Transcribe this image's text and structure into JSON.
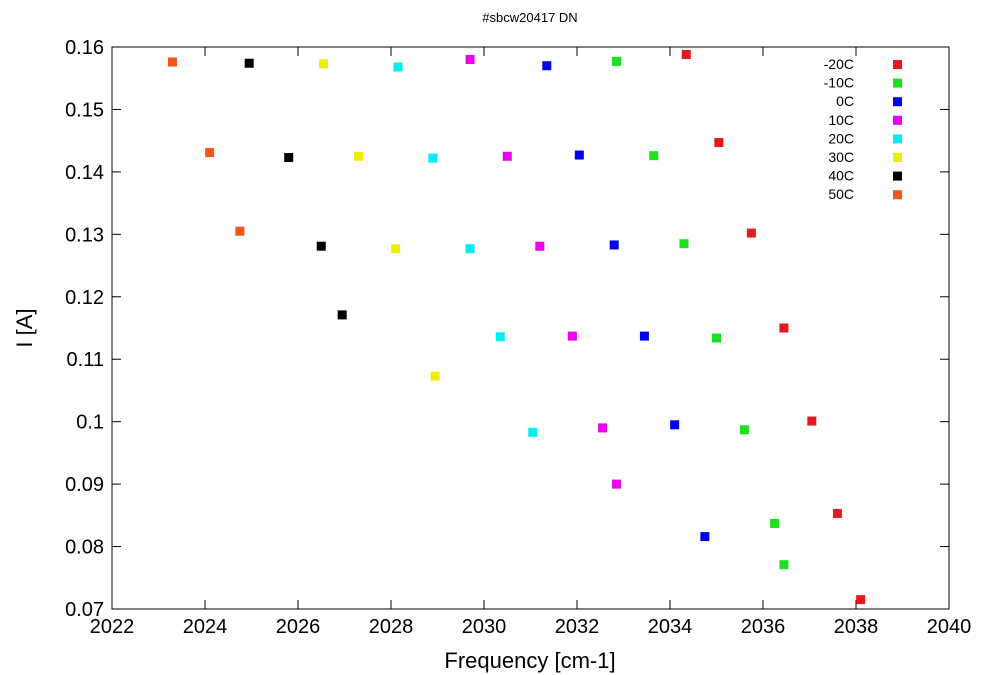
{
  "chart_data": {
    "type": "scatter",
    "title": "#sbcw20417 DN",
    "xlabel": "Frequency [cm-1]",
    "ylabel": "I [A]",
    "xlim": [
      2022,
      2040
    ],
    "ylim": [
      0.07,
      0.16
    ],
    "xticks": [
      "2022",
      "2024",
      "2026",
      "2028",
      "2030",
      "2032",
      "2034",
      "2036",
      "2038",
      "2040"
    ],
    "yticks": [
      "0.07",
      "0.08",
      "0.09",
      "0.1",
      "0.11",
      "0.12",
      "0.13",
      "0.14",
      "0.15",
      "0.16"
    ],
    "grid": false,
    "legend_position": "top-right",
    "series": [
      {
        "name": "-20C",
        "color": "#e41a1c",
        "points": [
          [
            2034.35,
            0.1588
          ],
          [
            2035.05,
            0.1447
          ],
          [
            2035.75,
            0.1302
          ],
          [
            2036.45,
            0.115
          ],
          [
            2037.05,
            0.1001
          ],
          [
            2037.6,
            0.0853
          ],
          [
            2038.1,
            0.0715
          ]
        ]
      },
      {
        "name": "-10C",
        "color": "#1fe01f",
        "points": [
          [
            2032.85,
            0.1577
          ],
          [
            2033.65,
            0.1426
          ],
          [
            2034.3,
            0.1285
          ],
          [
            2035.0,
            0.1134
          ],
          [
            2035.6,
            0.0987
          ],
          [
            2036.25,
            0.0837
          ],
          [
            2036.45,
            0.0771
          ]
        ]
      },
      {
        "name": "0C",
        "color": "#0000ee",
        "points": [
          [
            2031.35,
            0.157
          ],
          [
            2032.05,
            0.1427
          ],
          [
            2032.8,
            0.1283
          ],
          [
            2033.45,
            0.1137
          ],
          [
            2034.1,
            0.0995
          ],
          [
            2034.75,
            0.0816
          ]
        ]
      },
      {
        "name": "10C",
        "color": "#ee00ee",
        "points": [
          [
            2029.7,
            0.158
          ],
          [
            2030.5,
            0.1425
          ],
          [
            2031.2,
            0.1281
          ],
          [
            2031.9,
            0.1137
          ],
          [
            2032.55,
            0.099
          ],
          [
            2032.85,
            0.09
          ]
        ]
      },
      {
        "name": "20C",
        "color": "#00eeee",
        "points": [
          [
            2028.15,
            0.1568
          ],
          [
            2028.9,
            0.1422
          ],
          [
            2029.7,
            0.1277
          ],
          [
            2030.35,
            0.1136
          ],
          [
            2031.05,
            0.0983
          ]
        ]
      },
      {
        "name": "30C",
        "color": "#eeee00",
        "points": [
          [
            2026.55,
            0.1573
          ],
          [
            2027.3,
            0.1425
          ],
          [
            2028.1,
            0.1277
          ],
          [
            2028.95,
            0.1073
          ]
        ]
      },
      {
        "name": "40C",
        "color": "#000000",
        "points": [
          [
            2024.95,
            0.1574
          ],
          [
            2025.8,
            0.1423
          ],
          [
            2026.5,
            0.1281
          ],
          [
            2026.95,
            0.1171
          ]
        ]
      },
      {
        "name": "50C",
        "color": "#f0561a",
        "points": [
          [
            2023.3,
            0.1576
          ],
          [
            2024.1,
            0.1431
          ],
          [
            2024.75,
            0.1305
          ]
        ]
      }
    ]
  }
}
